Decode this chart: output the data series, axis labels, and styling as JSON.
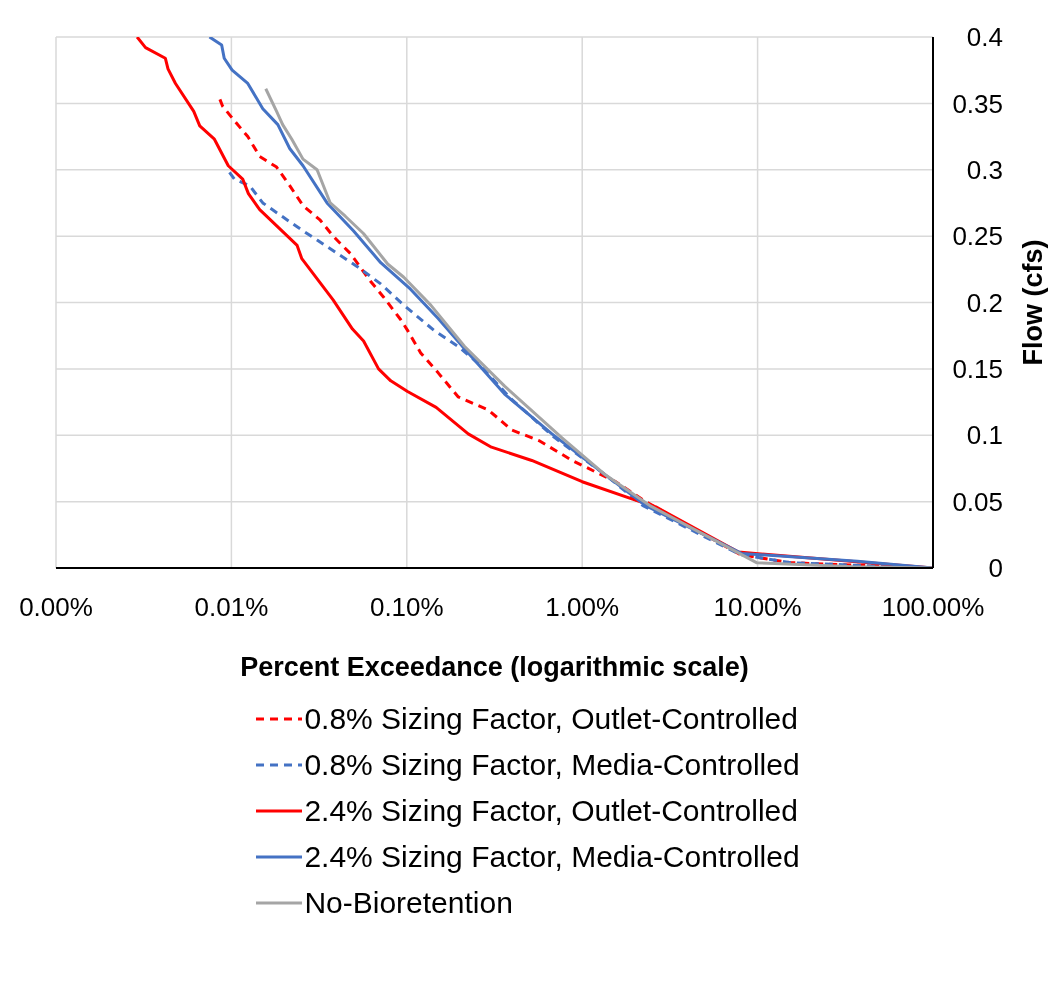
{
  "chart_data": {
    "type": "line",
    "xlabel": "Percent Exceedance (logarithmic scale)",
    "ylabel": "Flow (cfs)",
    "log": "x",
    "grid": true,
    "legend": "bottom",
    "marker": "none",
    "xlim": [
      0.001,
      100
    ],
    "xticks": [
      {
        "value": 0.001,
        "label": "0.00%"
      },
      {
        "value": 0.01,
        "label": "0.01%"
      },
      {
        "value": 0.1,
        "label": "0.10%"
      },
      {
        "value": 1,
        "label": "1.00%"
      },
      {
        "value": 10,
        "label": "10.00%"
      },
      {
        "value": 100,
        "label": "100.00%"
      }
    ],
    "ylim": [
      0,
      0.4
    ],
    "yticks": [
      0,
      0.05,
      0.1,
      0.15,
      0.2,
      0.25,
      0.3,
      0.35,
      0.4
    ],
    "series": [
      {
        "name": "0.8% Sizing Factor, Outlet-Controlled",
        "color": "#ff0000",
        "line_style": "dashed",
        "x": [
          0.0086,
          0.0089,
          0.0101,
          0.0107,
          0.0124,
          0.0145,
          0.0181,
          0.0215,
          0.0256,
          0.0321,
          0.038,
          0.0476,
          0.0621,
          0.0738,
          0.0924,
          0.101,
          0.12,
          0.151,
          0.196,
          0.292,
          0.396,
          0.566,
          0.877,
          1.55,
          2.3,
          7.98,
          15.5,
          37.1,
          100
        ],
        "values": [
          0.353,
          0.348,
          0.339,
          0.335,
          0.325,
          0.31,
          0.302,
          0.288,
          0.273,
          0.262,
          0.25,
          0.237,
          0.216,
          0.204,
          0.187,
          0.179,
          0.162,
          0.147,
          0.129,
          0.119,
          0.104,
          0.096,
          0.081,
          0.065,
          0.05,
          0.01,
          0.004,
          0.002,
          0
        ]
      },
      {
        "name": "0.8% Sizing Factor, Media-Controlled",
        "color": "#4472c4",
        "line_style": "dashed",
        "x": [
          0.00975,
          0.0104,
          0.0127,
          0.0151,
          0.0189,
          0.0237,
          0.0308,
          0.0401,
          0.0523,
          0.071,
          0.0961,
          0.143,
          0.196,
          0.256,
          0.396,
          0.7,
          1.36,
          2.22,
          7.98,
          15.5,
          37.1,
          100
        ],
        "values": [
          0.298,
          0.293,
          0.288,
          0.275,
          0.266,
          0.257,
          0.247,
          0.237,
          0.227,
          0.214,
          0.198,
          0.179,
          0.167,
          0.154,
          0.127,
          0.098,
          0.07,
          0.047,
          0.01,
          0.004,
          0.002,
          0
        ]
      },
      {
        "name": "2.4% Sizing Factor, Outlet-Controlled",
        "color": "#ff0000",
        "line_style": "solid",
        "x": [
          0.0029,
          0.00324,
          0.0042,
          0.00435,
          0.0048,
          0.0061,
          0.0066,
          0.008,
          0.0096,
          0.0116,
          0.0125,
          0.0145,
          0.0237,
          0.0252,
          0.038,
          0.049,
          0.0567,
          0.069,
          0.081,
          0.101,
          0.147,
          0.224,
          0.304,
          0.516,
          1.0,
          2.13,
          2.63,
          7.78,
          100
        ],
        "values": [
          0.4,
          0.392,
          0.384,
          0.376,
          0.365,
          0.344,
          0.333,
          0.323,
          0.303,
          0.293,
          0.282,
          0.27,
          0.243,
          0.233,
          0.202,
          0.18,
          0.171,
          0.15,
          0.141,
          0.133,
          0.121,
          0.101,
          0.091,
          0.081,
          0.065,
          0.05,
          0.046,
          0.012,
          0
        ]
      },
      {
        "name": "2.4% Sizing Factor, Media-Controlled",
        "color": "#4472c4",
        "line_style": "solid",
        "x": [
          0.0075,
          0.0088,
          0.0091,
          0.0101,
          0.0124,
          0.0151,
          0.0184,
          0.0215,
          0.0256,
          0.0351,
          0.0496,
          0.0621,
          0.071,
          0.105,
          0.151,
          0.224,
          0.361,
          0.672,
          1.36,
          2.3,
          8.09,
          37.1,
          100
        ],
        "values": [
          0.4,
          0.394,
          0.384,
          0.375,
          0.365,
          0.346,
          0.334,
          0.316,
          0.303,
          0.275,
          0.254,
          0.239,
          0.23,
          0.21,
          0.188,
          0.162,
          0.131,
          0.101,
          0.07,
          0.047,
          0.011,
          0.005,
          0
        ]
      },
      {
        "name": "No-Bioretention",
        "color": "#a5a5a5",
        "line_style": "solid",
        "x": [
          0.0157,
          0.0181,
          0.0196,
          0.0221,
          0.0256,
          0.0308,
          0.0366,
          0.0446,
          0.0566,
          0.0778,
          0.0961,
          0.137,
          0.213,
          0.361,
          0.767,
          1.36,
          2.43,
          9.86,
          35,
          100
        ],
        "values": [
          0.361,
          0.344,
          0.334,
          0.323,
          0.308,
          0.3,
          0.275,
          0.265,
          0.252,
          0.229,
          0.219,
          0.198,
          0.167,
          0.137,
          0.098,
          0.07,
          0.047,
          0.004,
          0.001,
          0
        ]
      }
    ]
  }
}
